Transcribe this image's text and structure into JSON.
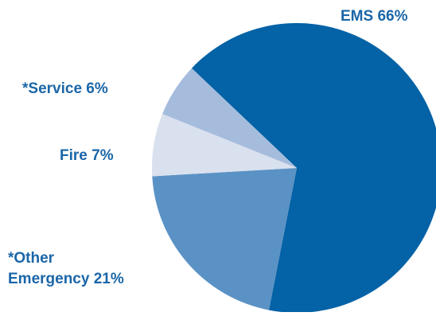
{
  "chart_data": {
    "type": "pie",
    "title": "",
    "slices": [
      {
        "label": "EMS 66%",
        "name": "EMS",
        "value": 66,
        "color": "#0462a6"
      },
      {
        "label": "*Other Emergency 21%",
        "name": "*Other Emergency",
        "value": 21,
        "color": "#5b92c5"
      },
      {
        "label": "Fire 7%",
        "name": "Fire",
        "value": 7,
        "color": "#d9e0ee"
      },
      {
        "label": "*Service 6%",
        "name": "*Service",
        "value": 6,
        "color": "#a5bcdd"
      }
    ],
    "label_color": "#1a66a8",
    "legend": "none"
  }
}
